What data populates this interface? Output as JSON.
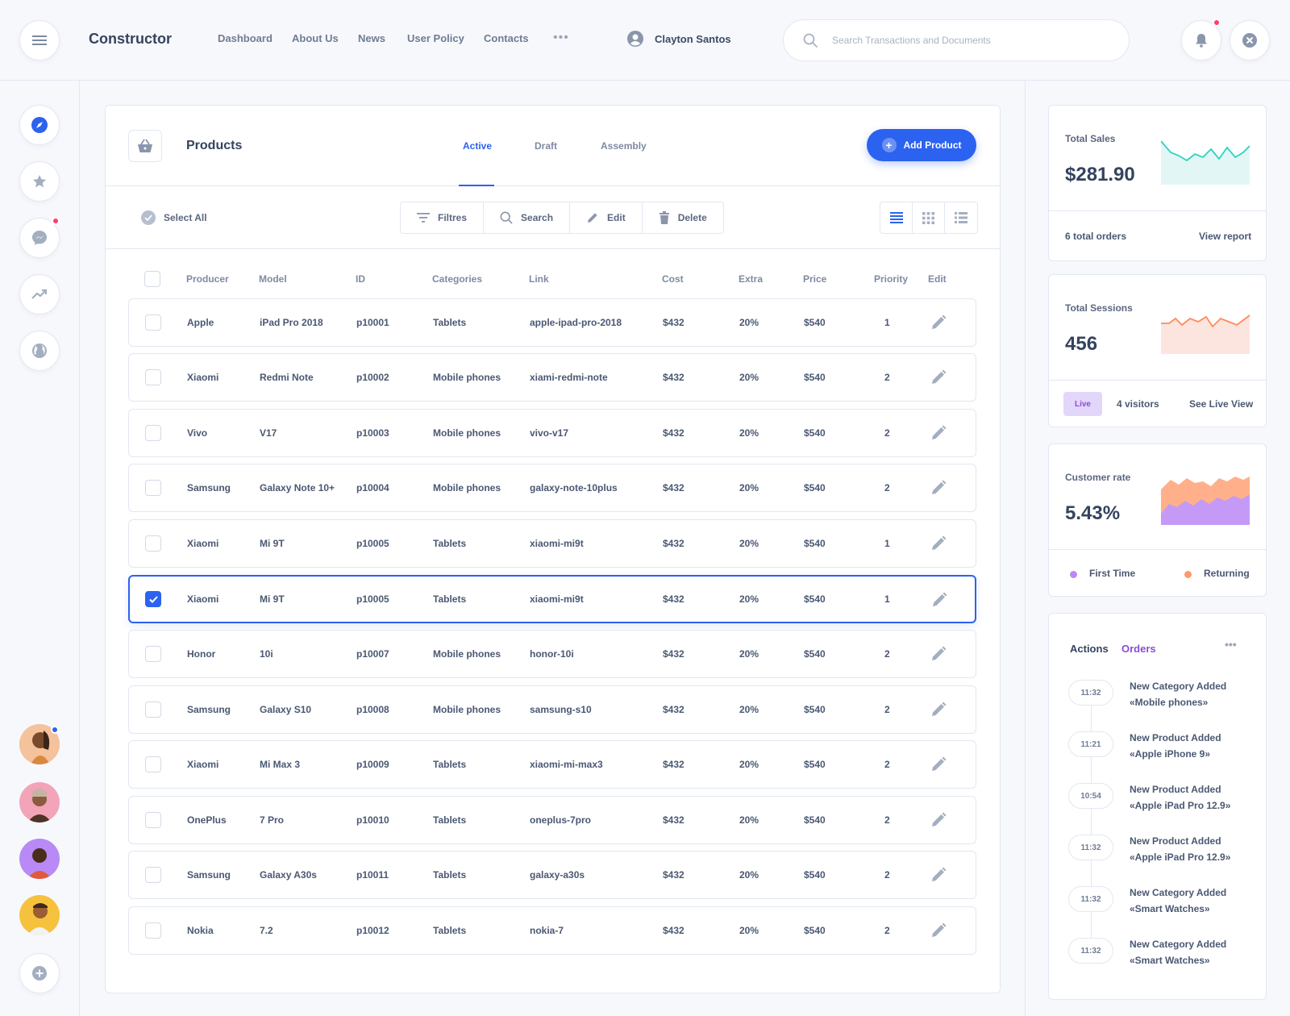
{
  "app": {
    "brand": "Constructor"
  },
  "nav": {
    "items": [
      "Dashboard",
      "About Us",
      "News",
      "User Policy",
      "Contacts"
    ],
    "more": "•••"
  },
  "user": {
    "name": "Clayton Santos"
  },
  "search": {
    "placeholder": "Search Transactions and Documents",
    "value": ""
  },
  "colors": {
    "accent": "#2c62f0",
    "alert": "#ff3d6e",
    "teal": "#2fd2c0",
    "orange": "#ff8a5b",
    "purple": "#b98af5"
  },
  "sidebar": {
    "icons": [
      "compass-icon",
      "star-icon",
      "messenger-icon",
      "trending-icon",
      "globe-icon"
    ],
    "add": "plus-icon"
  },
  "products": {
    "title": "Products",
    "tabs": [
      "Active",
      "Draft",
      "Assembly"
    ],
    "add_label": "Add Product",
    "select_all": "Select All",
    "tools": [
      "Filtres",
      "Search",
      "Edit",
      "Delete"
    ],
    "columns": [
      "Producer",
      "Model",
      "ID",
      "Categories",
      "Link",
      "Cost",
      "Extra",
      "Price",
      "Priority",
      "Edit"
    ],
    "rows": [
      {
        "producer": "Apple",
        "model": "iPad Pro 2018",
        "id": "p10001",
        "category": "Tablets",
        "link": "apple-ipad-pro-2018",
        "cost": "$432",
        "extra": "20%",
        "price": "$540",
        "priority": "1",
        "checked": false
      },
      {
        "producer": "Xiaomi",
        "model": "Redmi Note",
        "id": "p10002",
        "category": "Mobile phones",
        "link": "xiami-redmi-note",
        "cost": "$432",
        "extra": "20%",
        "price": "$540",
        "priority": "2",
        "checked": false
      },
      {
        "producer": "Vivo",
        "model": "V17",
        "id": "p10003",
        "category": "Mobile phones",
        "link": "vivo-v17",
        "cost": "$432",
        "extra": "20%",
        "price": "$540",
        "priority": "2",
        "checked": false
      },
      {
        "producer": "Samsung",
        "model": "Galaxy Note 10+",
        "id": "p10004",
        "category": "Mobile phones",
        "link": "galaxy-note-10plus",
        "cost": "$432",
        "extra": "20%",
        "price": "$540",
        "priority": "2",
        "checked": false
      },
      {
        "producer": "Xiaomi",
        "model": "Mi 9T",
        "id": "p10005",
        "category": "Tablets",
        "link": "xiaomi-mi9t",
        "cost": "$432",
        "extra": "20%",
        "price": "$540",
        "priority": "1",
        "checked": false
      },
      {
        "producer": "Xiaomi",
        "model": "Mi 9T",
        "id": "p10005",
        "category": "Tablets",
        "link": "xiaomi-mi9t",
        "cost": "$432",
        "extra": "20%",
        "price": "$540",
        "priority": "1",
        "checked": true
      },
      {
        "producer": "Honor",
        "model": "10i",
        "id": "p10007",
        "category": "Mobile phones",
        "link": "honor-10i",
        "cost": "$432",
        "extra": "20%",
        "price": "$540",
        "priority": "2",
        "checked": false
      },
      {
        "producer": "Samsung",
        "model": "Galaxy S10",
        "id": "p10008",
        "category": "Mobile phones",
        "link": "samsung-s10",
        "cost": "$432",
        "extra": "20%",
        "price": "$540",
        "priority": "2",
        "checked": false
      },
      {
        "producer": "Xiaomi",
        "model": "Mi Max 3",
        "id": "p10009",
        "category": "Tablets",
        "link": "xiaomi-mi-max3",
        "cost": "$432",
        "extra": "20%",
        "price": "$540",
        "priority": "2",
        "checked": false
      },
      {
        "producer": "OnePlus",
        "model": "7 Pro",
        "id": "p10010",
        "category": "Tablets",
        "link": "oneplus-7pro",
        "cost": "$432",
        "extra": "20%",
        "price": "$540",
        "priority": "2",
        "checked": false
      },
      {
        "producer": "Samsung",
        "model": "Galaxy A30s",
        "id": "p10011",
        "category": "Tablets",
        "link": "galaxy-a30s",
        "cost": "$432",
        "extra": "20%",
        "price": "$540",
        "priority": "2",
        "checked": false
      },
      {
        "producer": "Nokia",
        "model": "7.2",
        "id": "p10012",
        "category": "Tablets",
        "link": "nokia-7",
        "cost": "$432",
        "extra": "20%",
        "price": "$540",
        "priority": "2",
        "checked": false
      }
    ]
  },
  "stats": {
    "sales": {
      "label": "Total Sales",
      "value": "$281.90",
      "orders": "6 total orders",
      "link": "View report"
    },
    "sessions": {
      "label": "Total Sessions",
      "value": "456",
      "badge": "Live",
      "visitors": "4 visitors",
      "link": "See Live View"
    },
    "customer": {
      "label": "Customer rate",
      "value": "5.43%",
      "legend_first": "First Time",
      "legend_returning": "Returning"
    }
  },
  "activity": {
    "tabs": [
      "Actions",
      "Orders"
    ],
    "more": "•••",
    "events": [
      {
        "time": "11:32",
        "title": "New Category Added",
        "detail": "«Mobile phones»"
      },
      {
        "time": "11:21",
        "title": "New Product Added",
        "detail": "«Apple iPhone 9»"
      },
      {
        "time": "10:54",
        "title": "New Product Added",
        "detail": "«Apple iPad Pro 12.9»"
      },
      {
        "time": "11:32",
        "title": "New Product Added",
        "detail": "«Apple iPad Pro 12.9»"
      },
      {
        "time": "11:32",
        "title": "New Category Added",
        "detail": "«Smart Watches»"
      },
      {
        "time": "11:32",
        "title": "New Category Added",
        "detail": "«Smart Watches»"
      }
    ]
  }
}
